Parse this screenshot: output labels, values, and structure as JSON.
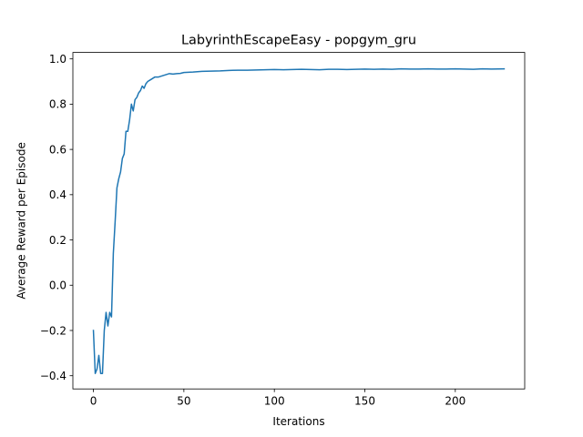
{
  "chart_data": {
    "type": "line",
    "title": "LabyrinthEscapeEasy - popgym_gru",
    "xlabel": "Iterations",
    "ylabel": "Average Reward per Episode",
    "xlim": [
      -11.35,
      238.35
    ],
    "ylim": [
      -0.4583,
      1.0285
    ],
    "xticks": [
      0,
      50,
      100,
      150,
      200
    ],
    "yticks": [
      -0.4,
      -0.2,
      0.0,
      0.2,
      0.4,
      0.6,
      0.8,
      1.0
    ],
    "xtick_labels": [
      "0",
      "50",
      "100",
      "150",
      "200"
    ],
    "ytick_labels": [
      "−0.4",
      "−0.2",
      "0.0",
      "0.2",
      "0.4",
      "0.6",
      "0.8",
      "1.0"
    ],
    "grid": false,
    "legend": "none",
    "series": [
      {
        "color": "#1f77b4",
        "x": [
          0,
          1,
          2,
          3,
          4,
          5,
          6,
          7,
          8,
          9,
          10,
          11,
          12,
          13,
          14,
          15,
          16,
          17,
          18,
          19,
          20,
          21,
          22,
          23,
          24,
          25,
          26,
          27,
          28,
          29,
          30,
          32,
          34,
          36,
          38,
          40,
          42,
          44,
          46,
          48,
          50,
          55,
          60,
          65,
          70,
          75,
          80,
          85,
          90,
          95,
          100,
          105,
          110,
          115,
          120,
          125,
          130,
          135,
          140,
          145,
          150,
          155,
          160,
          165,
          170,
          175,
          180,
          185,
          190,
          195,
          200,
          205,
          210,
          215,
          220,
          227
        ],
        "y": [
          -0.2,
          -0.39,
          -0.37,
          -0.31,
          -0.39,
          -0.39,
          -0.2,
          -0.12,
          -0.18,
          -0.12,
          -0.14,
          0.14,
          0.28,
          0.43,
          0.47,
          0.5,
          0.56,
          0.58,
          0.68,
          0.68,
          0.73,
          0.8,
          0.77,
          0.82,
          0.83,
          0.85,
          0.86,
          0.88,
          0.87,
          0.89,
          0.9,
          0.91,
          0.92,
          0.92,
          0.925,
          0.93,
          0.935,
          0.933,
          0.935,
          0.936,
          0.94,
          0.942,
          0.945,
          0.946,
          0.947,
          0.949,
          0.95,
          0.95,
          0.951,
          0.952,
          0.953,
          0.952,
          0.953,
          0.954,
          0.953,
          0.952,
          0.954,
          0.954,
          0.953,
          0.954,
          0.955,
          0.954,
          0.955,
          0.954,
          0.956,
          0.955,
          0.955,
          0.956,
          0.955,
          0.955,
          0.956,
          0.955,
          0.954,
          0.956,
          0.955,
          0.956
        ]
      }
    ]
  }
}
